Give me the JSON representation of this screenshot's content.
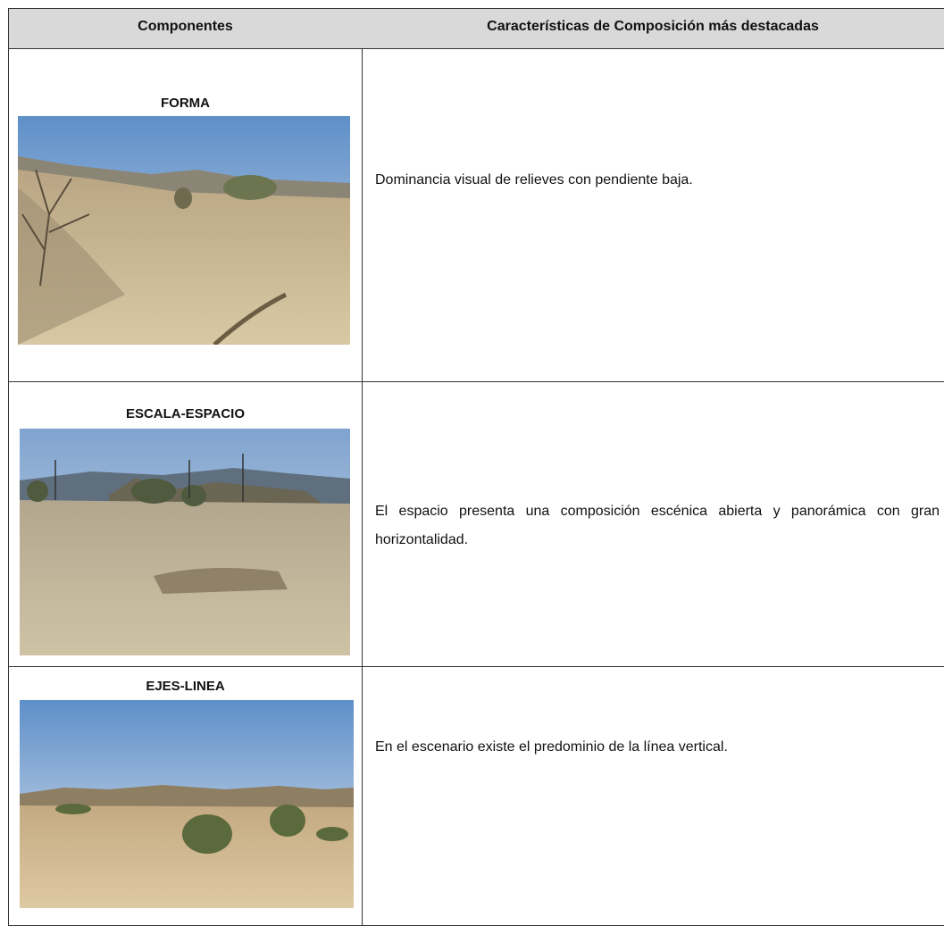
{
  "table": {
    "header": [
      "Componentes",
      "Características de Composición más destacadas"
    ],
    "rows": [
      {
        "component": "FORMA",
        "description": "Dominancia visual de relieves con pendiente baja."
      },
      {
        "component": "ESCALA-ESPACIO",
        "description": "El espacio presenta una composición escénica abierta y panorámica con gran horizontalidad."
      },
      {
        "component": "EJES-LINEA",
        "description": "En el escenario existe el predominio de la línea vertical."
      }
    ]
  }
}
